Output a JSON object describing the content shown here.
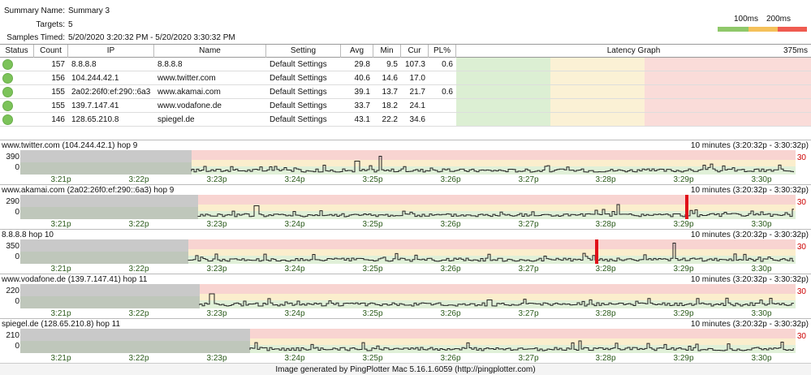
{
  "summary": {
    "name_label": "Summary Name:",
    "name_value": "Summary 3",
    "targets_label": "Targets:",
    "targets_value": "5",
    "samples_label": "Samples Timed:",
    "samples_value": "5/20/2020 3:20:32 PM - 5/20/2020 3:30:32 PM"
  },
  "scale_legend": {
    "label_100": "100ms",
    "label_200": "200ms",
    "colors": [
      "#8fc86a",
      "#f5c15a",
      "#ef5b50"
    ]
  },
  "table": {
    "headers": {
      "status": "Status",
      "count": "Count",
      "ip": "IP",
      "name": "Name",
      "setting": "Setting",
      "avg": "Avg",
      "min": "Min",
      "cur": "Cur",
      "pl": "PL%",
      "latency": "Latency Graph",
      "latency_max": "375ms"
    },
    "rows": [
      {
        "count": "157",
        "ip": "8.8.8.8",
        "name": "8.8.8.8",
        "setting": "Default Settings",
        "avg": "29.8",
        "min": "9.5",
        "cur": "107.3",
        "pl": "0.6"
      },
      {
        "count": "156",
        "ip": "104.244.42.1",
        "name": "www.twitter.com",
        "setting": "Default Settings",
        "avg": "40.6",
        "min": "14.6",
        "cur": "17.0",
        "pl": ""
      },
      {
        "count": "155",
        "ip": "2a02:26f0:ef:290::6a3",
        "name": "www.akamai.com",
        "setting": "Default Settings",
        "avg": "39.1",
        "min": "13.7",
        "cur": "21.7",
        "pl": "0.6"
      },
      {
        "count": "155",
        "ip": "139.7.147.41",
        "name": "www.vodafone.de",
        "setting": "Default Settings",
        "avg": "33.7",
        "min": "18.2",
        "cur": "24.1",
        "pl": ""
      },
      {
        "count": "146",
        "ip": "128.65.210.8",
        "name": "spiegel.de",
        "setting": "Default Settings",
        "avg": "43.1",
        "min": "22.2",
        "cur": "34.6",
        "pl": ""
      }
    ],
    "latency_scale_ms": 375
  },
  "panels": [
    {
      "title": "www.twitter.com (104.244.42.1) hop 9",
      "range": "10 minutes (3:20:32p - 3:30:32p)",
      "ytop": "390",
      "ybot": "0",
      "threshold": "30",
      "ticks": [
        "3:21p",
        "3:22p",
        "3:23p",
        "3:24p",
        "3:25p",
        "3:26p",
        "3:27p",
        "3:28p",
        "3:29p",
        "3:30p"
      ]
    },
    {
      "title": "www.akamai.com (2a02:26f0:ef:290::6a3) hop 9",
      "range": "10 minutes (3:20:32p - 3:30:32p)",
      "ytop": "290",
      "ybot": "0",
      "threshold": "30",
      "ticks": [
        "3:21p",
        "3:22p",
        "3:23p",
        "3:24p",
        "3:25p",
        "3:26p",
        "3:27p",
        "3:28p",
        "3:29p",
        "3:30p"
      ]
    },
    {
      "title": "8.8.8.8 hop 10",
      "range": "10 minutes (3:20:32p - 3:30:32p)",
      "ytop": "350",
      "ybot": "0",
      "threshold": "30",
      "ticks": [
        "3:21p",
        "3:22p",
        "3:23p",
        "3:24p",
        "3:25p",
        "3:26p",
        "3:27p",
        "3:28p",
        "3:29p",
        "3:30p"
      ]
    },
    {
      "title": "www.vodafone.de (139.7.147.41) hop 11",
      "range": "10 minutes (3:20:32p - 3:30:32p)",
      "ytop": "220",
      "ybot": "0",
      "threshold": "30",
      "ticks": [
        "3:21p",
        "3:22p",
        "3:23p",
        "3:24p",
        "3:25p",
        "3:26p",
        "3:27p",
        "3:28p",
        "3:29p",
        "3:30p"
      ]
    },
    {
      "title": "spiegel.de (128.65.210.8) hop 11",
      "range": "10 minutes (3:20:32p - 3:30:32p)",
      "ytop": "210",
      "ybot": "0",
      "threshold": "30",
      "ticks": [
        "3:21p",
        "3:22p",
        "3:23p",
        "3:24p",
        "3:25p",
        "3:26p",
        "3:27p",
        "3:28p",
        "3:29p",
        "3:30p"
      ]
    }
  ],
  "footer": "Image generated by PingPlotter Mac 5.16.1.6059  (http://pingplotter.com)"
}
